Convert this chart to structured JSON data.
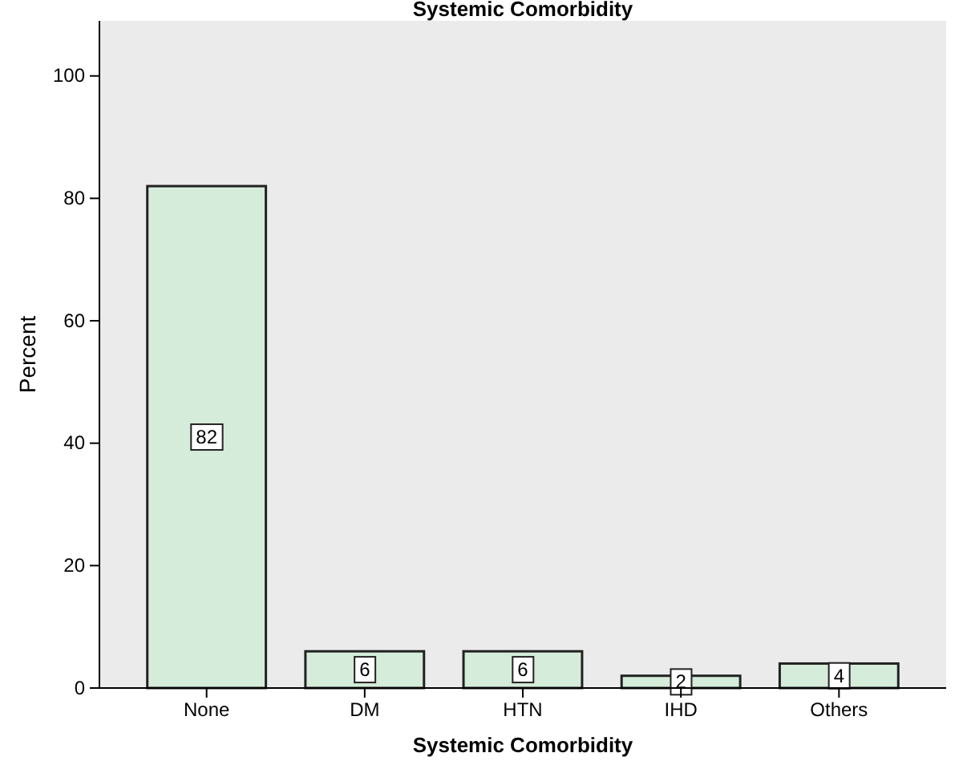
{
  "chart_data": {
    "type": "bar",
    "title": "Systemic Comorbidity",
    "xlabel": "Systemic Comorbidity",
    "ylabel": "Percent",
    "categories": [
      "None",
      "DM",
      "HTN",
      "IHD",
      "Others"
    ],
    "values": [
      82,
      6,
      6,
      2,
      4
    ],
    "color": "#d4ecd9",
    "ylim": [
      0,
      109
    ],
    "yticks": [
      0,
      20,
      40,
      60,
      80,
      100
    ],
    "grid": false,
    "data_labels": true
  }
}
